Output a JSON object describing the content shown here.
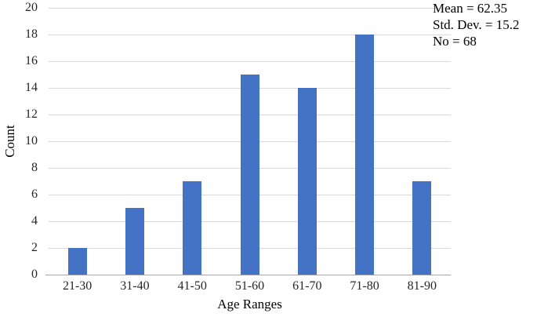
{
  "chart_data": {
    "type": "bar",
    "title": "",
    "categories": [
      "21-30",
      "31-40",
      "41-50",
      "51-60",
      "61-70",
      "71-80",
      "81-90"
    ],
    "values": [
      2,
      5,
      7,
      15,
      14,
      18,
      7
    ],
    "xlabel": "Age Ranges",
    "ylabel": "Count",
    "ylim": [
      0,
      20
    ],
    "ytick_step": 2,
    "grid": true,
    "legend": "none",
    "annotation": {
      "position": "top-right",
      "lines": [
        "Mean = 62.35",
        "Std. Dev. = 15.2",
        "No = 68"
      ]
    },
    "colors": {
      "bar": "#4472C4",
      "gridline": "#D9D9D9",
      "axis_line": "#A6A6A6",
      "tick_text": "#262626",
      "title_text": "#000000"
    }
  }
}
